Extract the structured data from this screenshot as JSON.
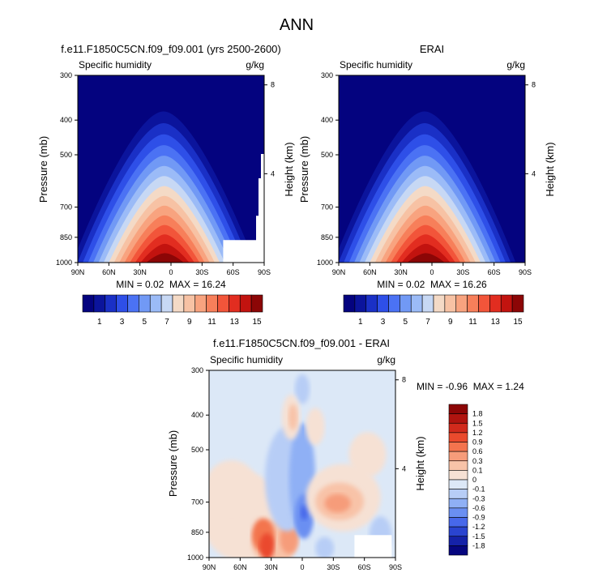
{
  "figure": {
    "title": "ANN"
  },
  "chart_data": [
    {
      "type": "heatmap",
      "title": "f.e11.F1850C5CN.f09_f09.001 (yrs 2500-2600)",
      "left_label": "Specific humidity",
      "units": "g/kg",
      "ylabel": "Pressure (mb)",
      "y2label": "Height (km)",
      "x_ticks": [
        "90N",
        "60N",
        "30N",
        "0",
        "30S",
        "60S",
        "90S"
      ],
      "y_ticks": [
        300,
        400,
        500,
        700,
        850,
        1000
      ],
      "y2_ticks": [
        8,
        4
      ],
      "stats": {
        "min": "0.02",
        "max": "16.24"
      },
      "colorbar_labels": [
        "1",
        "3",
        "5",
        "7",
        "9",
        "11",
        "13",
        "15"
      ],
      "colorbar_colors": [
        "#04037f",
        "#0b149c",
        "#1a30c6",
        "#2e4fe8",
        "#4b72f4",
        "#7199f5",
        "#9bbbf7",
        "#c7d8f4",
        "#f4dac6",
        "#f7c2a4",
        "#f8a37f",
        "#f77f5a",
        "#f2553a",
        "#e22d20",
        "#c2130f",
        "#8c0606"
      ],
      "peak_value": 16.24
    },
    {
      "type": "heatmap",
      "title": "ERAI",
      "left_label": "Specific humidity",
      "units": "g/kg",
      "ylabel": "Pressure (mb)",
      "y2label": "Height (km)",
      "x_ticks": [
        "90N",
        "60N",
        "30N",
        "0",
        "30S",
        "60S",
        "90S"
      ],
      "y_ticks": [
        300,
        400,
        500,
        700,
        850,
        1000
      ],
      "y2_ticks": [
        8,
        4
      ],
      "stats": {
        "min": "0.02",
        "max": "16.26"
      },
      "colorbar_labels": [
        "1",
        "3",
        "5",
        "7",
        "9",
        "11",
        "13",
        "15"
      ],
      "colorbar_colors": [
        "#04037f",
        "#0b149c",
        "#1a30c6",
        "#2e4fe8",
        "#4b72f4",
        "#7199f5",
        "#9bbbf7",
        "#c7d8f4",
        "#f4dac6",
        "#f7c2a4",
        "#f8a37f",
        "#f77f5a",
        "#f2553a",
        "#e22d20",
        "#c2130f",
        "#8c0606"
      ],
      "peak_value": 16.26
    },
    {
      "type": "heatmap",
      "title": "f.e11.F1850C5CN.f09_f09.001 - ERAI",
      "left_label": "Specific humidity",
      "units": "g/kg",
      "ylabel": "Pressure (mb)",
      "y2label": "Height (km)",
      "x_ticks": [
        "90N",
        "60N",
        "30N",
        "0",
        "30S",
        "60S",
        "90S"
      ],
      "y_ticks": [
        300,
        400,
        500,
        700,
        850,
        1000
      ],
      "y2_ticks": [
        8,
        4
      ],
      "stats": {
        "min": "-0.96",
        "max": "1.24"
      },
      "colorbar_labels": [
        "1.8",
        "1.5",
        "1.2",
        "0.9",
        "0.6",
        "0.3",
        "0.1",
        "0",
        "-0.1",
        "-0.3",
        "-0.6",
        "-0.9",
        "-1.2",
        "-1.5",
        "-1.8"
      ],
      "colorbar_colors": [
        "#8c0606",
        "#b0140f",
        "#d12a1c",
        "#ea4a2d",
        "#f3744e",
        "#f69c7a",
        "#f8c3a8",
        "#f6e1d4",
        "#dce8f7",
        "#b7cdf6",
        "#8fb0f5",
        "#6a8ff2",
        "#4768ea",
        "#2a44d0",
        "#1522a8",
        "#06067f"
      ]
    }
  ]
}
